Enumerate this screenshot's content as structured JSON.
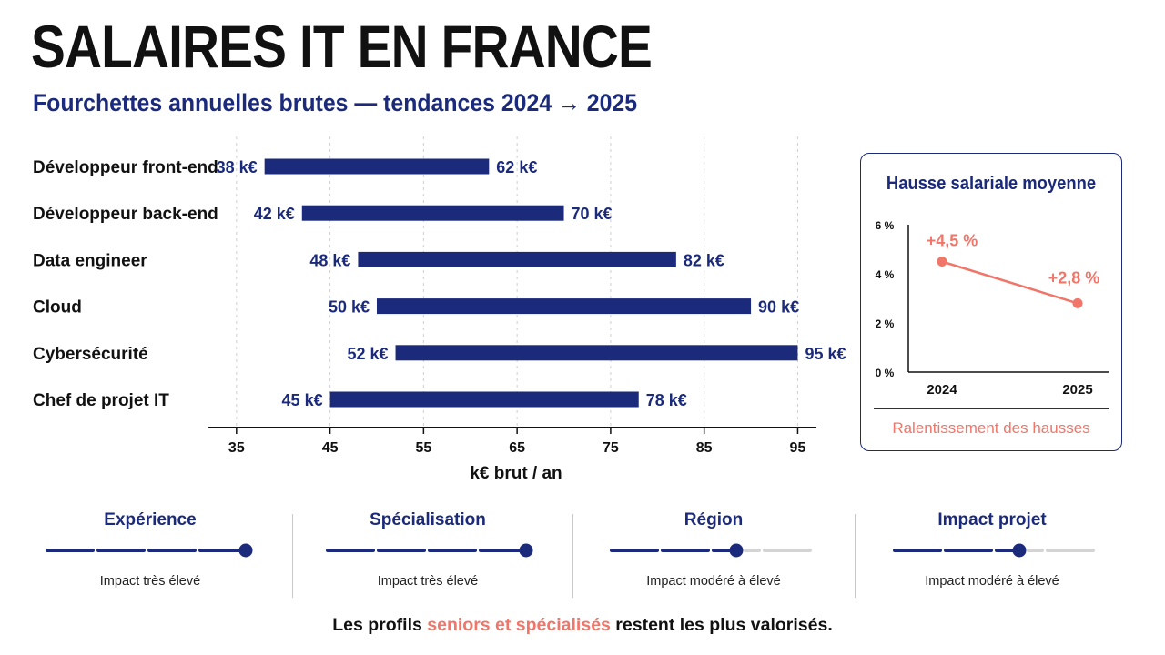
{
  "title": "SALAIRES IT EN FRANCE",
  "subtitle": "Fourchettes annuelles brutes — tendances 2024 → 2025",
  "colors": {
    "navy": "#1b2a7a",
    "coral": "#f0766a",
    "inactive": "#d4d4d4"
  },
  "chart_data": [
    {
      "type": "bar",
      "subtype": "range",
      "title": "",
      "categories": [
        "Développeur front-end",
        "Développeur back-end",
        "Data engineer",
        "Cloud",
        "Cybersécurité",
        "Chef de projet IT"
      ],
      "series": [
        {
          "name": "min",
          "values": [
            38,
            42,
            48,
            50,
            52,
            45
          ]
        },
        {
          "name": "max",
          "values": [
            62,
            70,
            82,
            90,
            95,
            78
          ]
        }
      ],
      "value_labels_min": [
        "38 k€",
        "42 k€",
        "48 k€",
        "50 k€",
        "52 k€",
        "45 k€"
      ],
      "value_labels_max": [
        "62 k€",
        "70 k€",
        "82 k€",
        "90 k€",
        "95 k€",
        "78 k€"
      ],
      "xlabel": "k€ brut / an",
      "xticks": [
        35,
        45,
        55,
        65,
        75,
        85,
        95
      ],
      "xlim": [
        32,
        97
      ],
      "grid": "vertical dashed"
    },
    {
      "type": "line",
      "title": "Hausse salariale moyenne",
      "x": [
        "2024",
        "2025"
      ],
      "series": [
        {
          "values": [
            4.5,
            2.8
          ]
        }
      ],
      "point_labels": [
        "+4,5 %",
        "+2,8 %"
      ],
      "yticks": [
        "0 %",
        "2 %",
        "4 %",
        "6 %"
      ],
      "ylim": [
        0,
        6
      ],
      "note": "Ralentissement des hausses"
    }
  ],
  "factors": [
    {
      "name": "Expérience",
      "description": "Impact très élevé",
      "level": 4,
      "max": 4
    },
    {
      "name": "Spécialisation",
      "description": "Impact très élevé",
      "level": 4,
      "max": 4
    },
    {
      "name": "Région",
      "description": "Impact modéré à élevé",
      "level": 2.5,
      "max": 4
    },
    {
      "name": "Impact projet",
      "description": "Impact modéré à élevé",
      "level": 2.5,
      "max": 4
    }
  ],
  "footer": {
    "before": "Les profils ",
    "accent": "seniors et spécialisés",
    "after": " restent les plus valorisés."
  }
}
